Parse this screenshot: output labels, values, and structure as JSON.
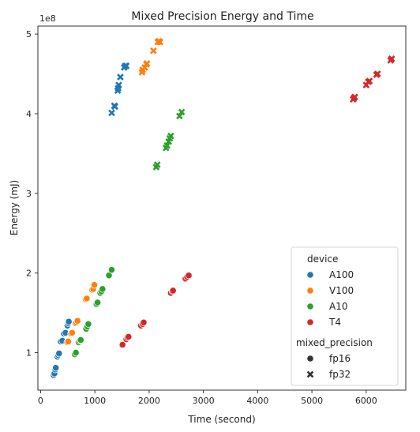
{
  "chart_data": {
    "type": "scatter",
    "title": "Mixed Precision Energy and Time",
    "xlabel": "Time (second)",
    "ylabel": "Energy (mJ)",
    "y_multiplier_label": "1e8",
    "xlim": [
      -50,
      6730
    ],
    "ylim": [
      0.53,
      5.1
    ],
    "xticks": [
      0,
      1000,
      2000,
      3000,
      4000,
      5000,
      6000
    ],
    "yticks": [
      1,
      2,
      3,
      4,
      5
    ],
    "grid": false,
    "legend_placement": "lower-right",
    "legend": {
      "hue_title": "device",
      "style_title": "mixed_precision",
      "devices": [
        {
          "name": "A100",
          "color": "#1f77b4"
        },
        {
          "name": "V100",
          "color": "#ff7f0e"
        },
        {
          "name": "A10",
          "color": "#2ca02c"
        },
        {
          "name": "T4",
          "color": "#d62728"
        }
      ],
      "styles": [
        {
          "name": "fp16",
          "marker": "circle"
        },
        {
          "name": "fp32",
          "marker": "x"
        }
      ]
    },
    "series": [
      {
        "device": "A100",
        "precision": "fp16",
        "points": [
          [
            240,
            0.72
          ],
          [
            255,
            0.74
          ],
          [
            270,
            0.79
          ],
          [
            280,
            0.81
          ],
          [
            310,
            0.95
          ],
          [
            325,
            0.97
          ],
          [
            340,
            0.99
          ],
          [
            370,
            1.14
          ],
          [
            400,
            1.15
          ],
          [
            430,
            1.24
          ],
          [
            460,
            1.25
          ],
          [
            495,
            1.34
          ],
          [
            510,
            1.37
          ],
          [
            520,
            1.39
          ]
        ]
      },
      {
        "device": "A100",
        "precision": "fp32",
        "points": [
          [
            1310,
            4.01
          ],
          [
            1360,
            4.1
          ],
          [
            1370,
            4.09
          ],
          [
            1420,
            4.29
          ],
          [
            1430,
            4.32
          ],
          [
            1440,
            4.36
          ],
          [
            1470,
            4.46
          ],
          [
            1540,
            4.58
          ],
          [
            1560,
            4.6
          ],
          [
            1580,
            4.6
          ]
        ]
      },
      {
        "device": "V100",
        "precision": "fp16",
        "points": [
          [
            490,
            1.13
          ],
          [
            510,
            1.14
          ],
          [
            560,
            1.24
          ],
          [
            580,
            1.25
          ],
          [
            640,
            1.37
          ],
          [
            660,
            1.38
          ],
          [
            680,
            1.4
          ],
          [
            830,
            1.67
          ],
          [
            850,
            1.68
          ],
          [
            950,
            1.79
          ],
          [
            970,
            1.8
          ],
          [
            990,
            1.85
          ]
        ]
      },
      {
        "device": "V100",
        "precision": "fp32",
        "points": [
          [
            1870,
            4.52
          ],
          [
            1880,
            4.55
          ],
          [
            1920,
            4.58
          ],
          [
            1950,
            4.62
          ],
          [
            1960,
            4.63
          ],
          [
            2080,
            4.79
          ],
          [
            2160,
            4.9
          ],
          [
            2180,
            4.91
          ],
          [
            2200,
            4.9
          ]
        ]
      },
      {
        "device": "A10",
        "precision": "fp16",
        "points": [
          [
            630,
            0.98
          ],
          [
            650,
            1.0
          ],
          [
            700,
            1.13
          ],
          [
            720,
            1.15
          ],
          [
            740,
            1.16
          ],
          [
            840,
            1.3
          ],
          [
            860,
            1.33
          ],
          [
            880,
            1.36
          ],
          [
            1030,
            1.61
          ],
          [
            1050,
            1.63
          ],
          [
            1100,
            1.75
          ],
          [
            1120,
            1.77
          ],
          [
            1140,
            1.8
          ],
          [
            1260,
            1.97
          ],
          [
            1310,
            2.04
          ]
        ]
      },
      {
        "device": "A10",
        "precision": "fp32",
        "points": [
          [
            2130,
            3.33
          ],
          [
            2150,
            3.36
          ],
          [
            2310,
            3.57
          ],
          [
            2330,
            3.6
          ],
          [
            2360,
            3.65
          ],
          [
            2380,
            3.69
          ],
          [
            2400,
            3.72
          ],
          [
            2560,
            3.97
          ],
          [
            2600,
            4.02
          ]
        ]
      },
      {
        "device": "T4",
        "precision": "fp16",
        "points": [
          [
            1510,
            1.1
          ],
          [
            1580,
            1.17
          ],
          [
            1600,
            1.19
          ],
          [
            1620,
            1.2
          ],
          [
            1850,
            1.34
          ],
          [
            1880,
            1.36
          ],
          [
            1900,
            1.38
          ],
          [
            2400,
            1.75
          ],
          [
            2430,
            1.77
          ],
          [
            2440,
            1.78
          ],
          [
            2670,
            1.93
          ],
          [
            2700,
            1.95
          ],
          [
            2730,
            1.97
          ]
        ]
      },
      {
        "device": "T4",
        "precision": "fp32",
        "points": [
          [
            5760,
            4.18
          ],
          [
            5780,
            4.2
          ],
          [
            5790,
            4.21
          ],
          [
            6000,
            4.36
          ],
          [
            6040,
            4.4
          ],
          [
            6060,
            4.41
          ],
          [
            6190,
            4.49
          ],
          [
            6210,
            4.5
          ],
          [
            6450,
            4.67
          ],
          [
            6470,
            4.69
          ]
        ]
      }
    ]
  }
}
